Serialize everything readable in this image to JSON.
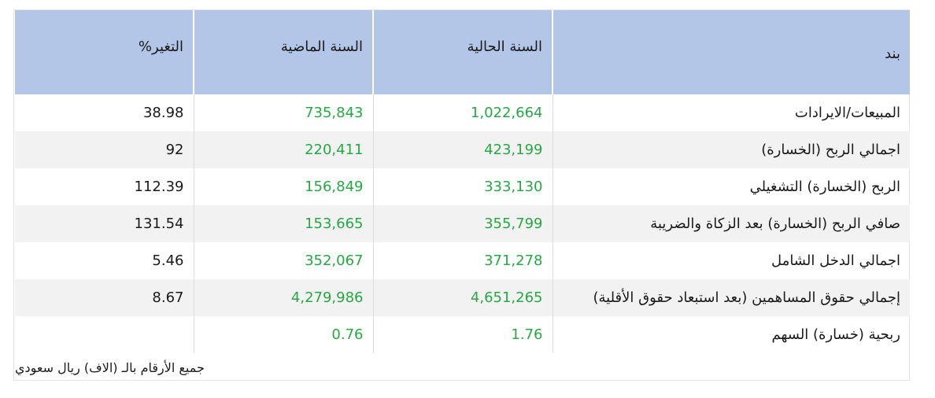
{
  "table": {
    "headers": {
      "item": "بند",
      "current_year": "السنة الحالية",
      "previous_year": "السنة الماضية",
      "change": "التغير%"
    },
    "rows": [
      {
        "item": "المبيعات/الايرادات",
        "current": "1,022,664",
        "previous": "735,843",
        "change": "38.98"
      },
      {
        "item": "اجمالي الربح (الخسارة)",
        "current": "423,199",
        "previous": "220,411",
        "change": "92"
      },
      {
        "item": "الربح (الخسارة) التشغيلي",
        "current": "333,130",
        "previous": "156,849",
        "change": "112.39"
      },
      {
        "item": "صافي الربح (الخسارة) بعد الزكاة والضريبة",
        "current": "355,799",
        "previous": "153,665",
        "change": "131.54"
      },
      {
        "item": "اجمالي الدخل الشامل",
        "current": "371,278",
        "previous": "352,067",
        "change": "5.46"
      },
      {
        "item": "إجمالي حقوق المساهمين (بعد استبعاد حقوق الأقلية)",
        "current": "4,651,265",
        "previous": "4,279,986",
        "change": "8.67"
      },
      {
        "item": "ربحية (خسارة) السهم",
        "current": "1.76",
        "previous": "0.76",
        "change": ""
      }
    ]
  },
  "footnote": "جميع الأرقام بالـ (الاف) ريال سعودي",
  "colors": {
    "header_bg": "#b4c6e7",
    "positive_value": "#27a844",
    "stripe": "#f2f2f2"
  }
}
